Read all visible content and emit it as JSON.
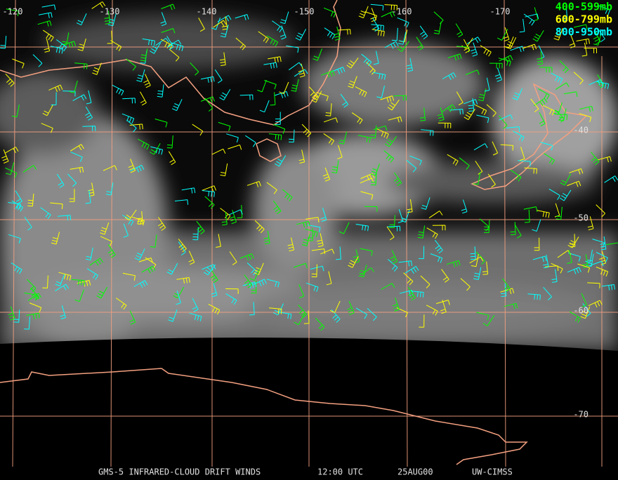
{
  "longitude_labels": [
    "-120",
    "-130",
    "-140",
    "-150",
    "-160",
    "-170"
  ],
  "latitude_labels": [
    "-40",
    "-50",
    "-60",
    "-70"
  ],
  "legend": [
    {
      "label": "400-599mb",
      "color": "#00ff00"
    },
    {
      "label": "600-799mb",
      "color": "#ffff00"
    },
    {
      "label": "800-950mb",
      "color": "#00ffff"
    }
  ],
  "footer": {
    "title": "GMS-5 INFRARED-CLOUD DRIFT WINDS",
    "time": "12:00 UTC",
    "date": "25AUG00",
    "source": "UW-CIMSS"
  }
}
